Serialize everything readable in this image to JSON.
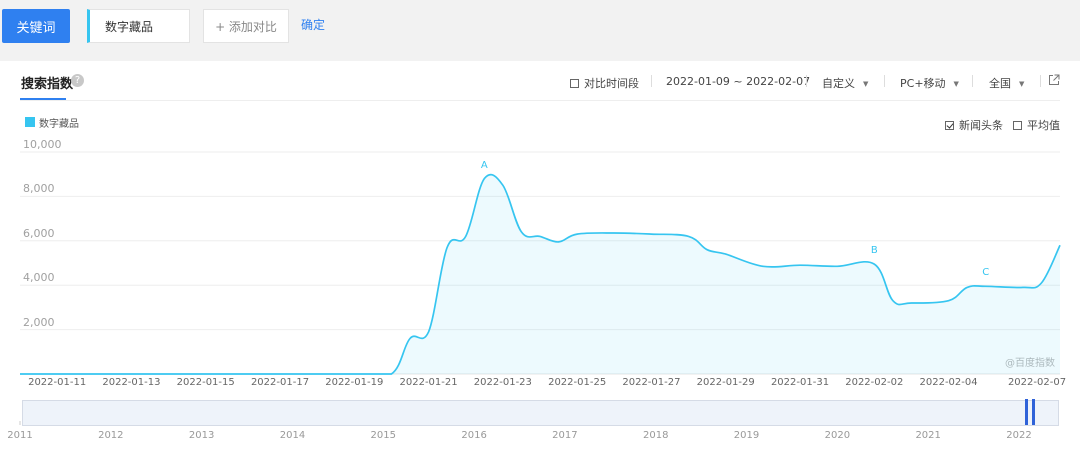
{
  "toolbar": {
    "keyword_button": "关键词",
    "keyword_value": "数字藏品",
    "add_compare": "+ 添加对比",
    "confirm": "确定"
  },
  "panel": {
    "tab_title": "搜索指数",
    "help_icon": "question-icon",
    "compare_period": "对比时间段",
    "date_range": "2022-01-09 ~ 2022-02-07",
    "custom": "自定义",
    "device": "PC+移动",
    "region": "全国",
    "export_icon": "external-link-icon",
    "news_option": "新闻头条",
    "news_checked": true,
    "average_option": "平均值",
    "average_checked": false,
    "watermark": "@百度指数"
  },
  "chart_data": {
    "type": "area",
    "series": [
      {
        "name": "数字藏品",
        "color": "#36c5f0",
        "points": [
          [
            "2022-01-10",
            0
          ],
          [
            "2022-01-12",
            0
          ],
          [
            "2022-01-14",
            0
          ],
          [
            "2022-01-16",
            0
          ],
          [
            "2022-01-18",
            0
          ],
          [
            "2022-01-19",
            0
          ],
          [
            "2022-01-20",
            0
          ],
          [
            "2022-01-20T12",
            1600
          ],
          [
            "2022-01-21",
            1900
          ],
          [
            "2022-01-21T12",
            5700
          ],
          [
            "2022-01-22",
            6200
          ],
          [
            "2022-01-22T12",
            8800
          ],
          [
            "2022-01-23",
            8500
          ],
          [
            "2022-01-23T12",
            6400
          ],
          [
            "2022-01-24",
            6200
          ],
          [
            "2022-01-24T12",
            5950
          ],
          [
            "2022-01-25",
            6300
          ],
          [
            "2022-01-26",
            6350
          ],
          [
            "2022-01-27",
            6300
          ],
          [
            "2022-01-28",
            6200
          ],
          [
            "2022-01-28T12",
            5600
          ],
          [
            "2022-01-29",
            5400
          ],
          [
            "2022-01-30",
            4850
          ],
          [
            "2022-01-31",
            4900
          ],
          [
            "2022-02-01",
            4850
          ],
          [
            "2022-02-02",
            4950
          ],
          [
            "2022-02-02T12",
            3300
          ],
          [
            "2022-02-03",
            3200
          ],
          [
            "2022-02-04",
            3300
          ],
          [
            "2022-02-04T12",
            3900
          ],
          [
            "2022-02-05",
            3950
          ],
          [
            "2022-02-06",
            3900
          ],
          [
            "2022-02-06T12",
            4100
          ],
          [
            "2022-02-07",
            5800
          ]
        ]
      }
    ],
    "x_tick_labels": [
      "2022-01-11",
      "2022-01-13",
      "2022-01-15",
      "2022-01-17",
      "2022-01-19",
      "2022-01-21",
      "2022-01-23",
      "2022-01-25",
      "2022-01-27",
      "2022-01-29",
      "2022-01-31",
      "2022-02-02",
      "2022-02-04",
      "2022-02-07"
    ],
    "y_ticks": [
      "10,000",
      "8,000",
      "6,000",
      "4,000",
      "2,000"
    ],
    "ylim": [
      0,
      10000
    ],
    "annotations": [
      {
        "label": "A",
        "x": "2022-01-22T12",
        "y": 8800
      },
      {
        "label": "B",
        "x": "2022-02-02",
        "y": 4950
      },
      {
        "label": "C",
        "x": "2022-02-05",
        "y": 3950
      }
    ],
    "grid": true,
    "legend_position": "top-left",
    "navigator_years": [
      "2011",
      "2012",
      "2013",
      "2014",
      "2015",
      "2016",
      "2017",
      "2018",
      "2019",
      "2020",
      "2021",
      "2022"
    ]
  }
}
